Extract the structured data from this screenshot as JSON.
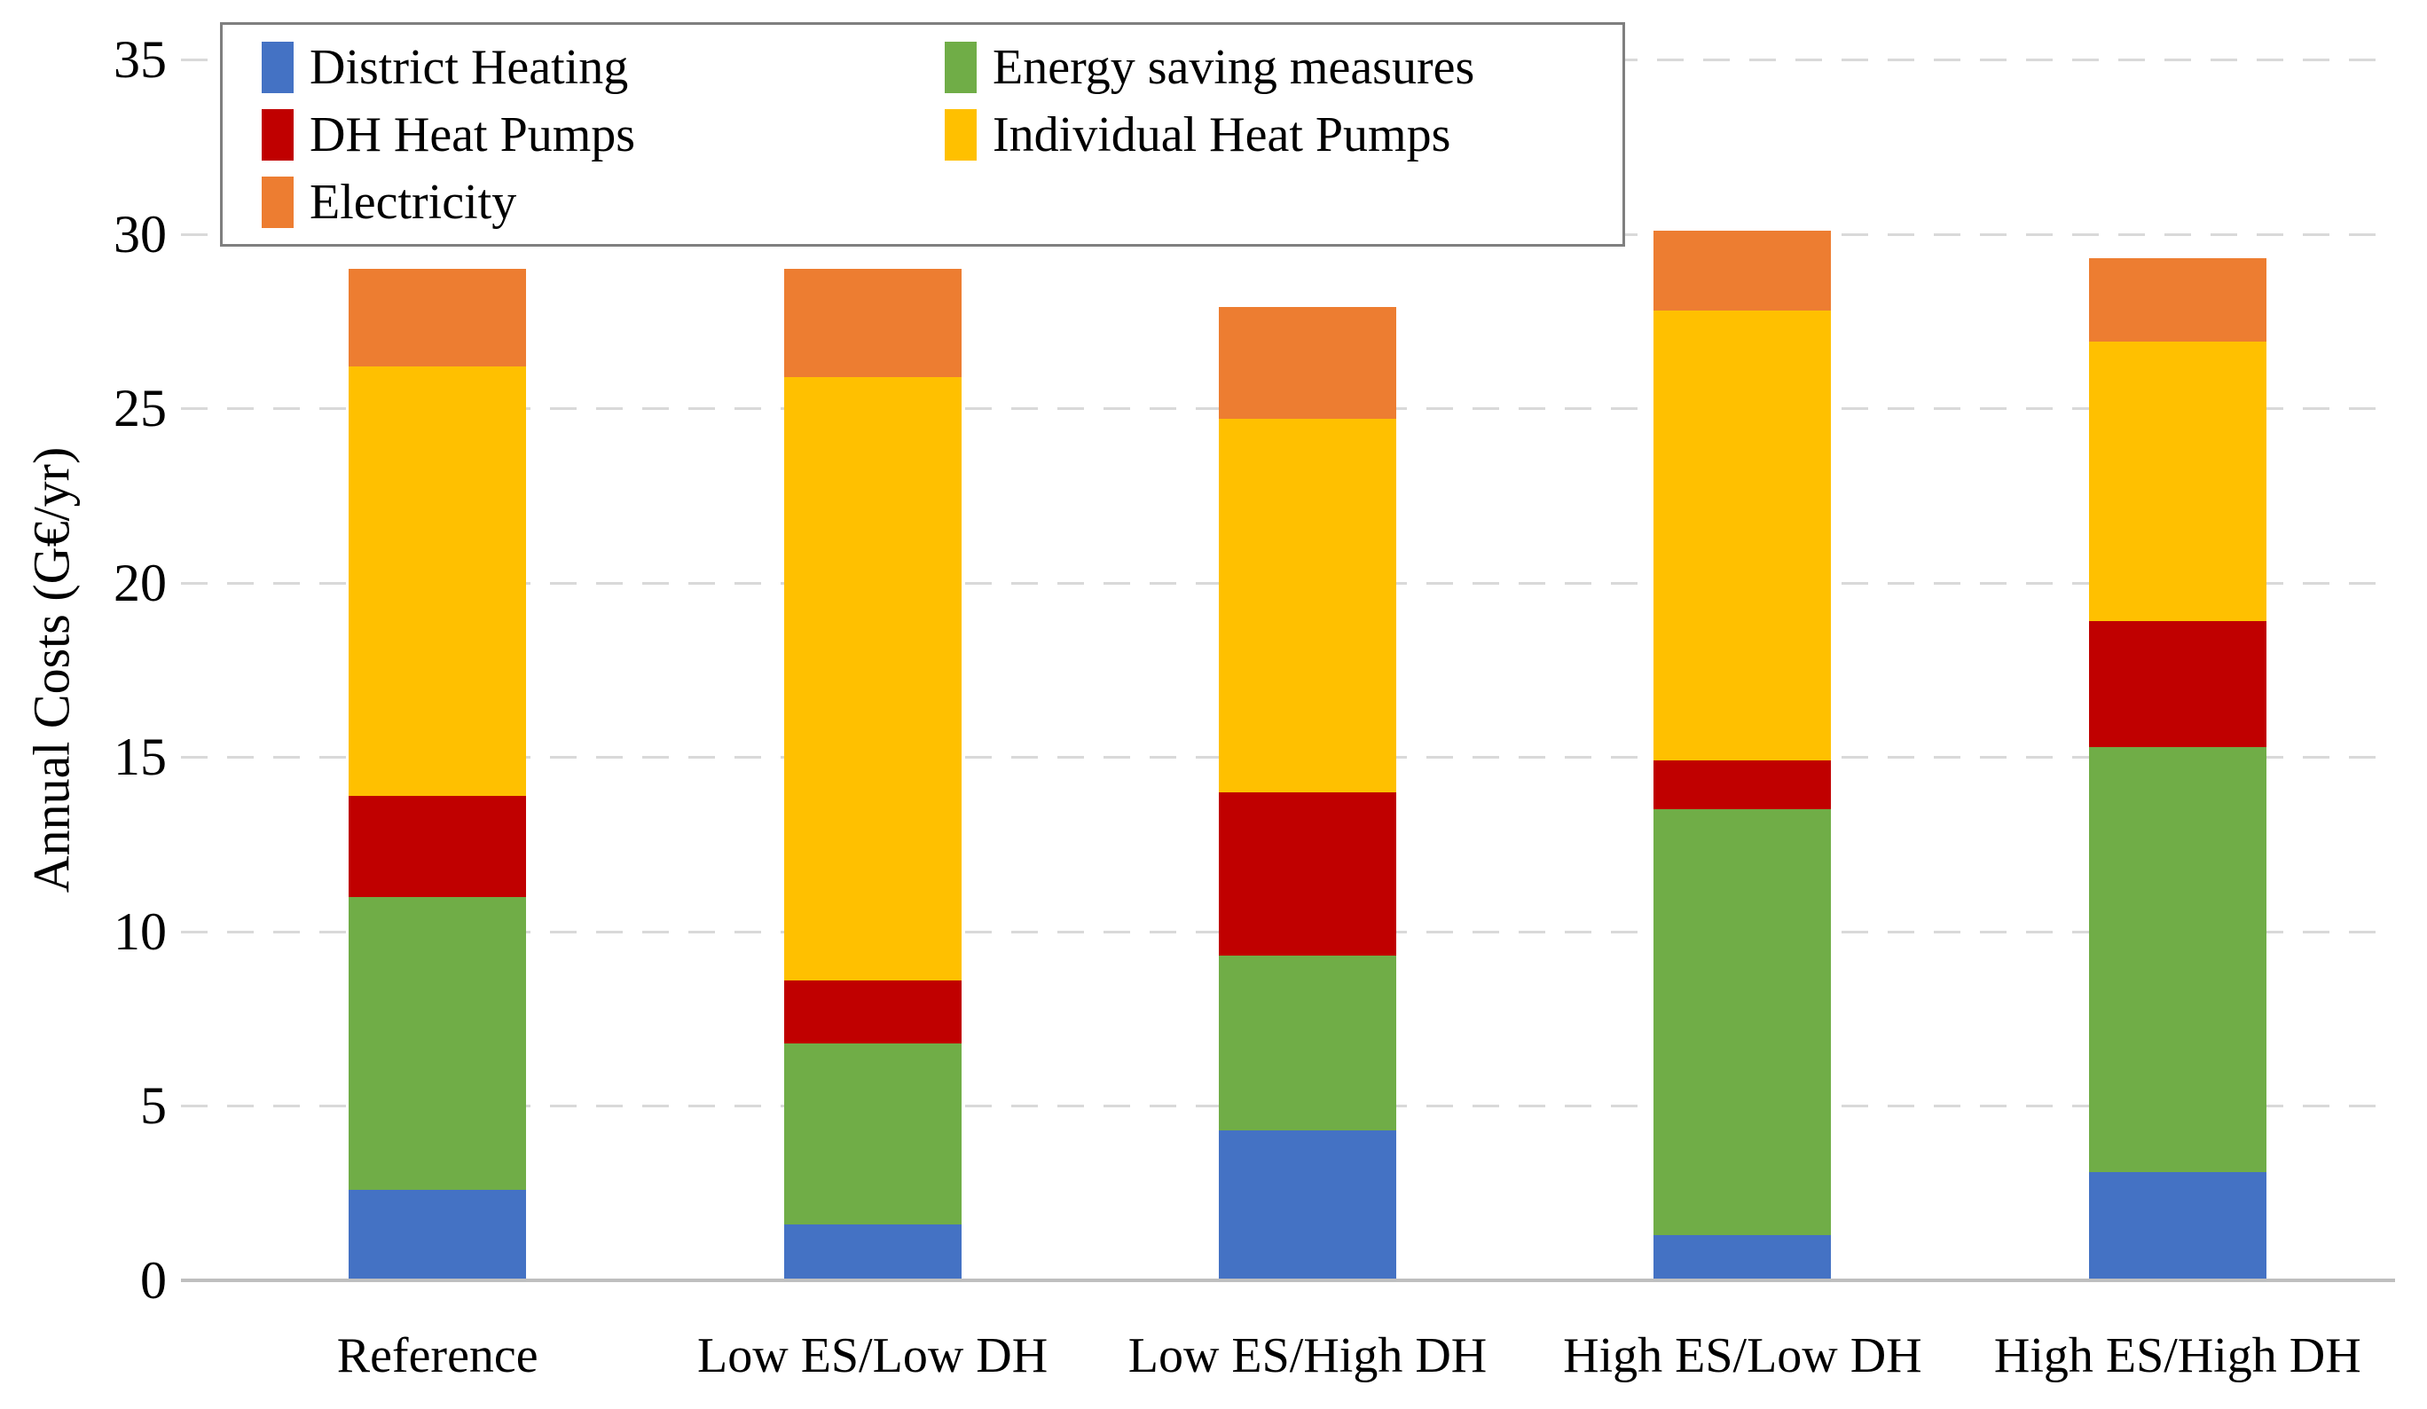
{
  "chart_data": {
    "type": "bar",
    "stacked": true,
    "title": "",
    "xlabel": "",
    "ylabel": "Annual Costs (G€/yr)",
    "ylim": [
      0,
      35
    ],
    "yticks": [
      0,
      5,
      10,
      15,
      20,
      25,
      30,
      35
    ],
    "grid": "horizontal dashed, every 5 units",
    "legend_position": "top-left overlay box, 2 columns",
    "categories": [
      "Reference",
      "Low ES/Low DH",
      "Low ES/High DH",
      "High ES/Low DH",
      "High ES/High DH"
    ],
    "series": [
      {
        "name": "District Heating",
        "color": "#4472C4",
        "values": [
          2.6,
          1.6,
          4.3,
          1.3,
          3.1
        ]
      },
      {
        "name": "Energy saving measures",
        "color": "#70AD47",
        "values": [
          8.4,
          5.2,
          5.0,
          12.2,
          12.2
        ]
      },
      {
        "name": "DH Heat Pumps",
        "color": "#C00000",
        "values": [
          2.9,
          1.8,
          4.7,
          1.4,
          3.6
        ]
      },
      {
        "name": "Individual Heat Pumps",
        "color": "#FFC000",
        "values": [
          12.3,
          17.3,
          10.7,
          12.9,
          8.0
        ]
      },
      {
        "name": "Electricity",
        "color": "#ED7D31",
        "values": [
          2.8,
          3.1,
          3.2,
          2.3,
          2.4
        ]
      }
    ],
    "totals": [
      29.0,
      29.0,
      27.9,
      30.1,
      29.3
    ]
  },
  "colors": {
    "gridline": "#D9D9D9",
    "axis_line": "#BFBFBF",
    "legend_border": "#7F7F7F",
    "text": "#000000",
    "background": "#FFFFFF"
  }
}
